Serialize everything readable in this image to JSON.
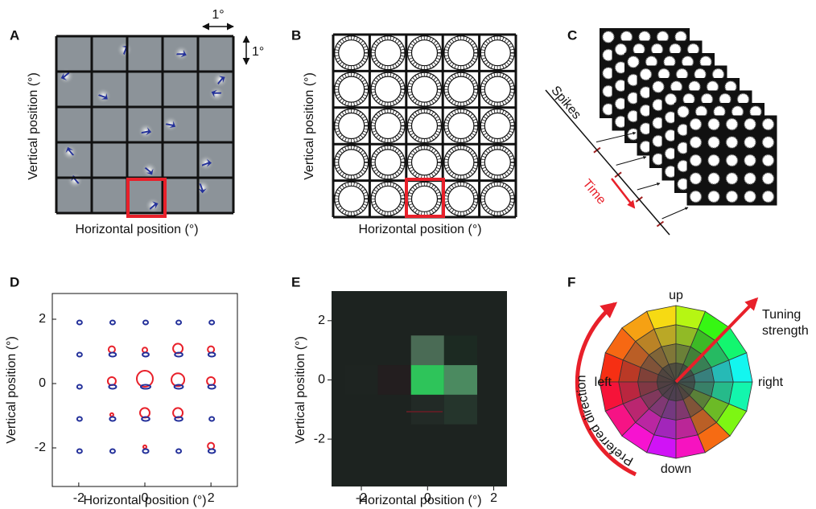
{
  "panels": {
    "a": {
      "label": "A",
      "x_label": "Horizontal position (°)",
      "y_label": "Vertical position (°)",
      "scale_x": "1°",
      "scale_y": "1°"
    },
    "b": {
      "label": "B",
      "x_label": "Horizontal position (°)",
      "y_label": "Vertical position (°)"
    },
    "c": {
      "label": "C",
      "spikes": "Spikes",
      "time": "Time"
    },
    "d": {
      "label": "D",
      "x_label": "Horizontal position (°)",
      "y_label": "Vertical position (°)",
      "xlim": [
        -2.8,
        2.8
      ],
      "ylim": [
        -3.2,
        2.8
      ],
      "xticks": [
        -2,
        0,
        2
      ],
      "yticks": [
        -2,
        0,
        2
      ]
    },
    "e": {
      "label": "E",
      "x_label": "Horizontal position (°)",
      "y_label": "Vertical position (°)",
      "xlim": [
        -2.9,
        2.4
      ],
      "ylim": [
        -3.6,
        3
      ],
      "xticks": [
        -2,
        0,
        2
      ],
      "yticks": [
        -2,
        0,
        2
      ]
    },
    "f": {
      "label": "F",
      "up": "up",
      "down": "down",
      "left": "left",
      "right": "right",
      "tuning": [
        "Tuning",
        "strength"
      ],
      "preferred": "Preferred direction"
    }
  }
}
